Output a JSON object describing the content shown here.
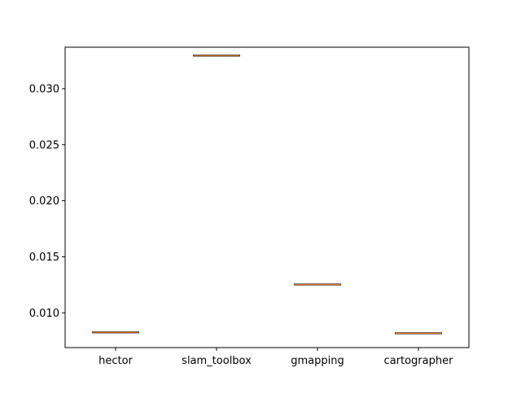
{
  "chart_data": {
    "type": "boxplot",
    "title": "",
    "xlabel": "",
    "ylabel": "",
    "categories": [
      "hector",
      "slam_toolbox",
      "gmapping",
      "cartographer"
    ],
    "values": [
      0.00826,
      0.03295,
      0.01253,
      0.00818
    ],
    "ylim": [
      0.0069,
      0.0337
    ],
    "yticks": [
      0.01,
      0.015,
      0.02,
      0.025,
      0.03
    ],
    "ytick_labels": [
      "0.010",
      "0.015",
      "0.020",
      "0.025",
      "0.030"
    ],
    "grid": false,
    "legend": "none",
    "colors": {
      "median": "#e07b28",
      "box": "#000000",
      "axes": "#000000"
    }
  }
}
